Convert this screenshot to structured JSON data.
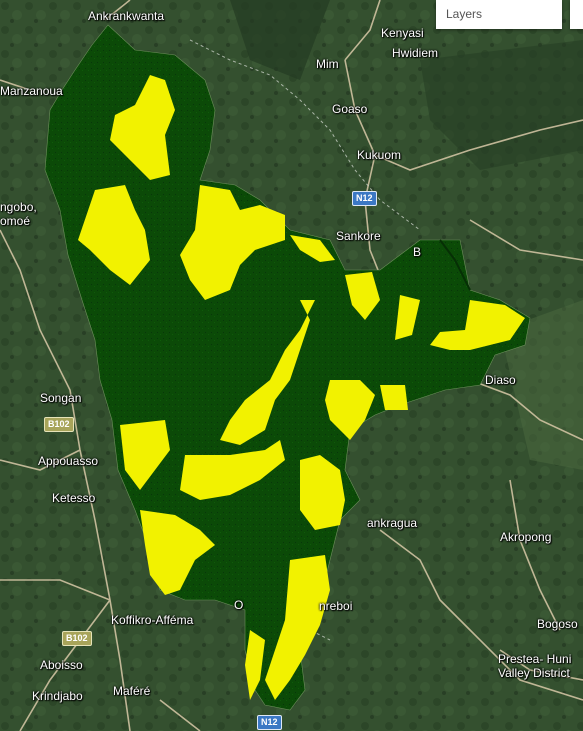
{
  "layers_control": {
    "label": "Layers"
  },
  "legend_colors": {
    "forest": "#0a4a06",
    "highlight": "#f2f200",
    "basemap": "#34502f",
    "road": "#d9c9a8",
    "boundary": "#c8d0c6"
  },
  "places": {
    "ankrankwanta": "Ankrankwanta",
    "kenyasi": "Kenyasi",
    "hwidiem": "Hwidiem",
    "mim": "Mim",
    "manzanoua": "Manzanoua",
    "goaso": "Goaso",
    "kukuom": "Kukuom",
    "ngobo": "ngobo,",
    "omoe": "omoé",
    "sankore": "Sankore",
    "b_partial": "B",
    "songan": "Songan",
    "diaso": "Diaso",
    "appouasso": "Appouasso",
    "ketesso": "Ketesso",
    "ankragua": "ankragua",
    "akropong": "Akropong",
    "koffikro": "Koffikro-Afféma",
    "o_partial": "O",
    "nreboi": "nreboi",
    "bogoso": "Bogoso",
    "aboisso": "Aboisso",
    "prestea1": "Prestea- Huni",
    "prestea2": "Valley District",
    "krindjabo": "Krindjabo",
    "mafere": "Maféré"
  },
  "road_shields": {
    "n12_top": "N12",
    "b102_a": "B102",
    "b102_b": "B102",
    "n12_bottom": "N12"
  }
}
